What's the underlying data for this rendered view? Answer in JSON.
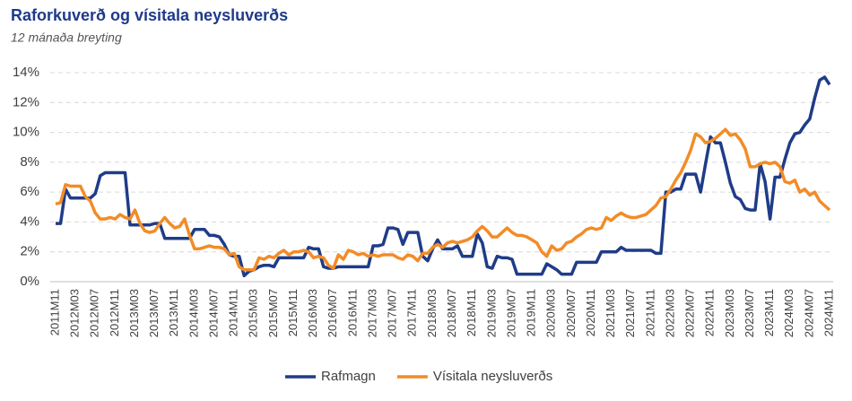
{
  "chart_data": {
    "type": "line",
    "title": "Raforkuverð og vísitala neysluverðs",
    "subtitle": "12 mánaða breyting",
    "categories": [
      "2011M11",
      null,
      null,
      null,
      "2012M03",
      null,
      null,
      null,
      "2012M07",
      null,
      null,
      null,
      "2012M11",
      null,
      null,
      null,
      "2013M03",
      null,
      null,
      null,
      "2013M07",
      null,
      null,
      null,
      "2013M11",
      null,
      null,
      null,
      "2014M03",
      null,
      null,
      null,
      "2014M07",
      null,
      null,
      null,
      "2014M11",
      null,
      null,
      null,
      "2015M03",
      null,
      null,
      null,
      "2015M07",
      null,
      null,
      null,
      "2015M11",
      null,
      null,
      null,
      "2016M03",
      null,
      null,
      null,
      "2016M07",
      null,
      null,
      null,
      "2016M11",
      null,
      null,
      null,
      "2017M03",
      null,
      null,
      null,
      "2017M07",
      null,
      null,
      null,
      "2017M11",
      null,
      null,
      null,
      "2018M03",
      null,
      null,
      null,
      "2018M07",
      null,
      null,
      null,
      "2018M11",
      null,
      null,
      null,
      "2019M03",
      null,
      null,
      null,
      "2019M07",
      null,
      null,
      null,
      "2019M11",
      null,
      null,
      null,
      "2020M03",
      null,
      null,
      null,
      "2020M07",
      null,
      null,
      null,
      "2020M11",
      null,
      null,
      null,
      "2021M03",
      null,
      null,
      null,
      "2021M07",
      null,
      null,
      null,
      "2021M11",
      null,
      null,
      null,
      "2022M03",
      null,
      null,
      null,
      "2022M07",
      null,
      null,
      null,
      "2022M11",
      null,
      null,
      null,
      "2023M03",
      null,
      null,
      null,
      "2023M07",
      null,
      null,
      null,
      "2023M11",
      null,
      null,
      null,
      "2024M03",
      null,
      null,
      null,
      "2024M07",
      null,
      null,
      null,
      "2024M11"
    ],
    "series": [
      {
        "name": "Rafmagn",
        "color": "#1f3c88",
        "values": [
          3.9,
          3.9,
          6.2,
          5.6,
          5.6,
          5.6,
          5.6,
          5.6,
          5.9,
          7.1,
          7.3,
          7.3,
          7.3,
          7.3,
          7.3,
          3.8,
          3.8,
          3.8,
          3.8,
          3.8,
          3.9,
          3.9,
          2.9,
          2.9,
          2.9,
          2.9,
          2.9,
          2.9,
          3.5,
          3.5,
          3.5,
          3.1,
          3.1,
          3.0,
          2.5,
          1.8,
          1.7,
          1.7,
          0.4,
          0.7,
          0.8,
          1.0,
          1.1,
          1.1,
          1.0,
          1.6,
          1.6,
          1.6,
          1.6,
          1.6,
          1.6,
          2.3,
          2.2,
          2.2,
          1.0,
          0.9,
          0.9,
          1.0,
          1.0,
          1.0,
          1.0,
          1.0,
          1.0,
          1.0,
          2.4,
          2.4,
          2.5,
          3.6,
          3.6,
          3.5,
          2.5,
          3.3,
          3.3,
          3.3,
          1.7,
          1.4,
          2.2,
          2.8,
          2.2,
          2.2,
          2.2,
          2.4,
          1.7,
          1.7,
          1.7,
          3.2,
          2.6,
          1.0,
          0.9,
          1.7,
          1.6,
          1.6,
          1.5,
          0.5,
          0.5,
          0.5,
          0.5,
          0.5,
          0.5,
          1.2,
          1.0,
          0.8,
          0.5,
          0.5,
          0.5,
          1.3,
          1.3,
          1.3,
          1.3,
          1.3,
          2.0,
          2.0,
          2.0,
          2.0,
          2.3,
          2.1,
          2.1,
          2.1,
          2.1,
          2.1,
          2.1,
          1.9,
          1.9,
          6.0,
          6.0,
          6.2,
          6.2,
          7.2,
          7.2,
          7.2,
          6.0,
          7.9,
          9.7,
          9.3,
          9.3,
          8.0,
          6.6,
          5.7,
          5.5,
          4.9,
          4.8,
          4.8,
          7.9,
          6.7,
          4.2,
          7.0,
          7.0,
          8.2,
          9.3,
          9.9,
          10.0,
          10.5,
          10.9,
          12.3,
          13.5,
          13.7,
          13.2
        ]
      },
      {
        "name": "Vísitala neysluverðs",
        "color": "#f28c28",
        "values": [
          5.2,
          5.3,
          6.5,
          6.4,
          6.4,
          6.4,
          5.7,
          5.4,
          4.6,
          4.2,
          4.2,
          4.3,
          4.2,
          4.5,
          4.3,
          4.2,
          4.8,
          3.9,
          3.4,
          3.3,
          3.4,
          3.9,
          4.3,
          3.9,
          3.6,
          3.7,
          4.2,
          3.1,
          2.2,
          2.2,
          2.3,
          2.4,
          2.3,
          2.3,
          2.2,
          1.8,
          1.9,
          1.0,
          0.8,
          0.8,
          0.8,
          1.6,
          1.5,
          1.7,
          1.6,
          1.9,
          2.1,
          1.8,
          2.0,
          2.0,
          2.1,
          2.0,
          1.6,
          1.7,
          1.6,
          1.1,
          0.9,
          1.8,
          1.5,
          2.1,
          2.0,
          1.8,
          1.9,
          1.7,
          1.8,
          1.7,
          1.8,
          1.8,
          1.8,
          1.6,
          1.5,
          1.8,
          1.7,
          1.4,
          1.9,
          1.9,
          2.3,
          2.5,
          2.3,
          2.6,
          2.7,
          2.6,
          2.7,
          2.8,
          3.0,
          3.4,
          3.7,
          3.4,
          3.0,
          3.0,
          3.3,
          3.6,
          3.3,
          3.1,
          3.1,
          3.0,
          2.8,
          2.6,
          2.0,
          1.7,
          2.4,
          2.1,
          2.2,
          2.6,
          2.7,
          3.0,
          3.2,
          3.5,
          3.6,
          3.5,
          3.6,
          4.3,
          4.1,
          4.4,
          4.6,
          4.4,
          4.3,
          4.3,
          4.4,
          4.5,
          4.8,
          5.1,
          5.6,
          5.7,
          6.2,
          6.8,
          7.3,
          8.0,
          8.8,
          9.9,
          9.7,
          9.3,
          9.4,
          9.6,
          9.9,
          10.2,
          9.8,
          9.9,
          9.5,
          8.9,
          7.7,
          7.7,
          7.9,
          8.0,
          7.9,
          8.0,
          7.7,
          6.7,
          6.6,
          6.8,
          6.0,
          6.2,
          5.8,
          6.0,
          5.4,
          5.1,
          4.8
        ]
      }
    ],
    "ylim": [
      0,
      14
    ],
    "yticks": [
      {
        "value": 0,
        "label": "0%"
      },
      {
        "value": 2,
        "label": "2%"
      },
      {
        "value": 4,
        "label": "4%"
      },
      {
        "value": 6,
        "label": "6%"
      },
      {
        "value": 8,
        "label": "8%"
      },
      {
        "value": 10,
        "label": "10%"
      },
      {
        "value": 12,
        "label": "12%"
      },
      {
        "value": 14,
        "label": "14%"
      }
    ],
    "grid": true,
    "legend": "bottom"
  }
}
